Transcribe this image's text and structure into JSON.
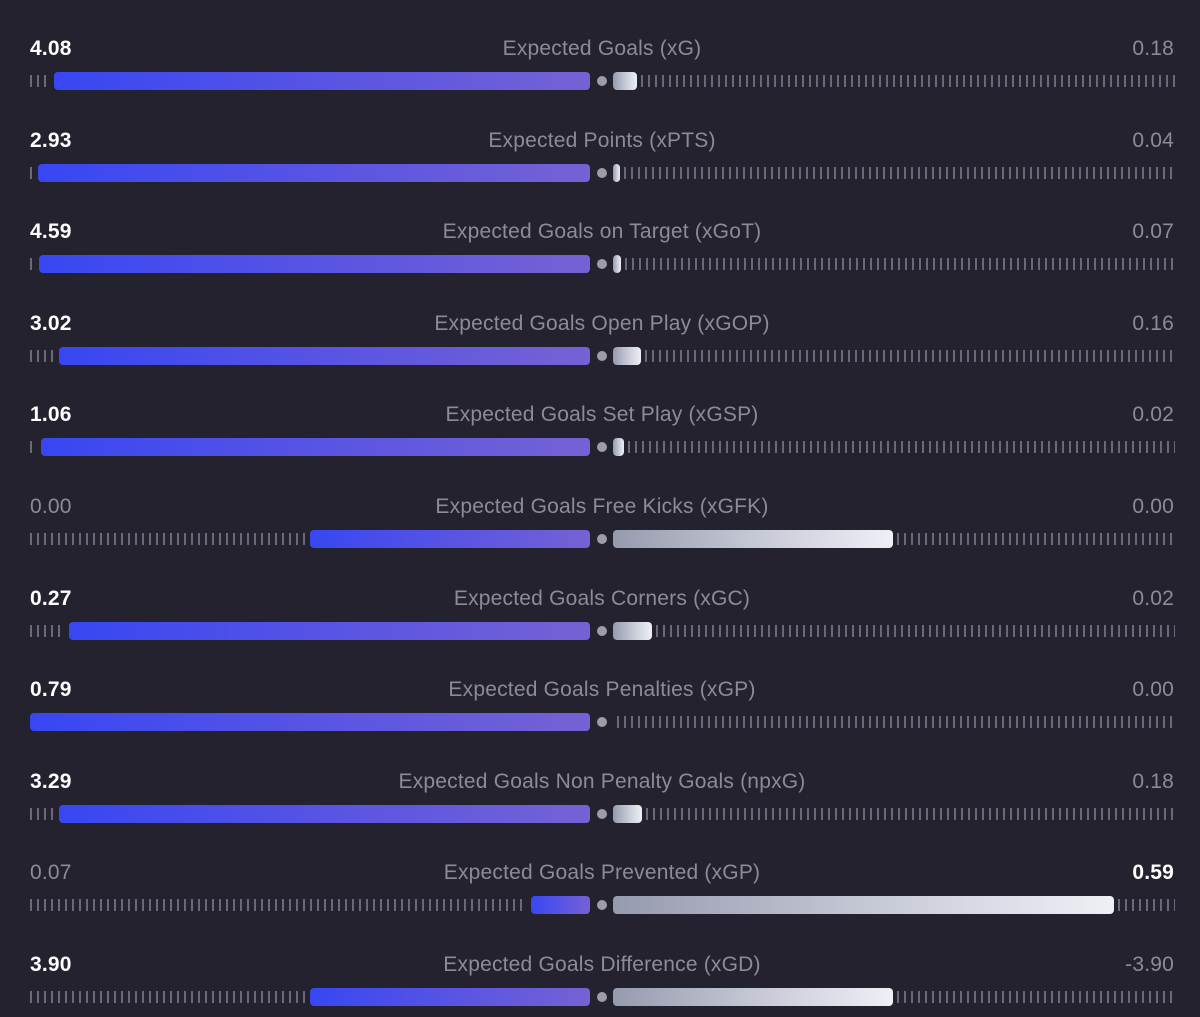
{
  "theme": {
    "background": "#23222e",
    "home_color": "#3847f2",
    "away_color": "#eef0f5",
    "muted_text": "#8c8b98"
  },
  "stats": [
    {
      "name": "Expected Goals (xG)",
      "home": "4.08",
      "away": "0.18",
      "home_share": 0.957,
      "away_share": 0.042,
      "highlight": "home"
    },
    {
      "name": "Expected Points (xPTS)",
      "home": "2.93",
      "away": "0.04",
      "home_share": 0.986,
      "away_share": 0.013,
      "highlight": "home"
    },
    {
      "name": "Expected Goals on Target (xGoT)",
      "home": "4.59",
      "away": "0.07",
      "home_share": 0.984,
      "away_share": 0.015,
      "highlight": "home"
    },
    {
      "name": "Expected Goals Open Play (xGOP)",
      "home": "3.02",
      "away": "0.16",
      "home_share": 0.949,
      "away_share": 0.05,
      "highlight": "home"
    },
    {
      "name": "Expected Goals Set Play (xGSP)",
      "home": "1.06",
      "away": "0.02",
      "home_share": 0.98,
      "away_share": 0.019,
      "highlight": "home"
    },
    {
      "name": "Expected Goals Free Kicks (xGFK)",
      "home": "0.00",
      "away": "0.00",
      "home_share": 0.5,
      "away_share": 0.5,
      "highlight": "none"
    },
    {
      "name": "Expected Goals Corners (xGC)",
      "home": "0.27",
      "away": "0.02",
      "home_share": 0.93,
      "away_share": 0.069,
      "highlight": "home"
    },
    {
      "name": "Expected Goals Penalties (xGP)",
      "home": "0.79",
      "away": "0.00",
      "home_share": 1.0,
      "away_share": 0.0,
      "highlight": "home"
    },
    {
      "name": "Expected Goals Non Penalty Goals (npxG)",
      "home": "3.29",
      "away": "0.18",
      "home_share": 0.948,
      "away_share": 0.052,
      "highlight": "home"
    },
    {
      "name": "Expected Goals Prevented (xGP)",
      "home": "0.07",
      "away": "0.59",
      "home_share": 0.106,
      "away_share": 0.894,
      "highlight": "away"
    },
    {
      "name": "Expected Goals Difference (xGD)",
      "home": "3.90",
      "away": "-3.90",
      "home_share": 0.5,
      "away_share": 0.5,
      "highlight": "home"
    }
  ]
}
